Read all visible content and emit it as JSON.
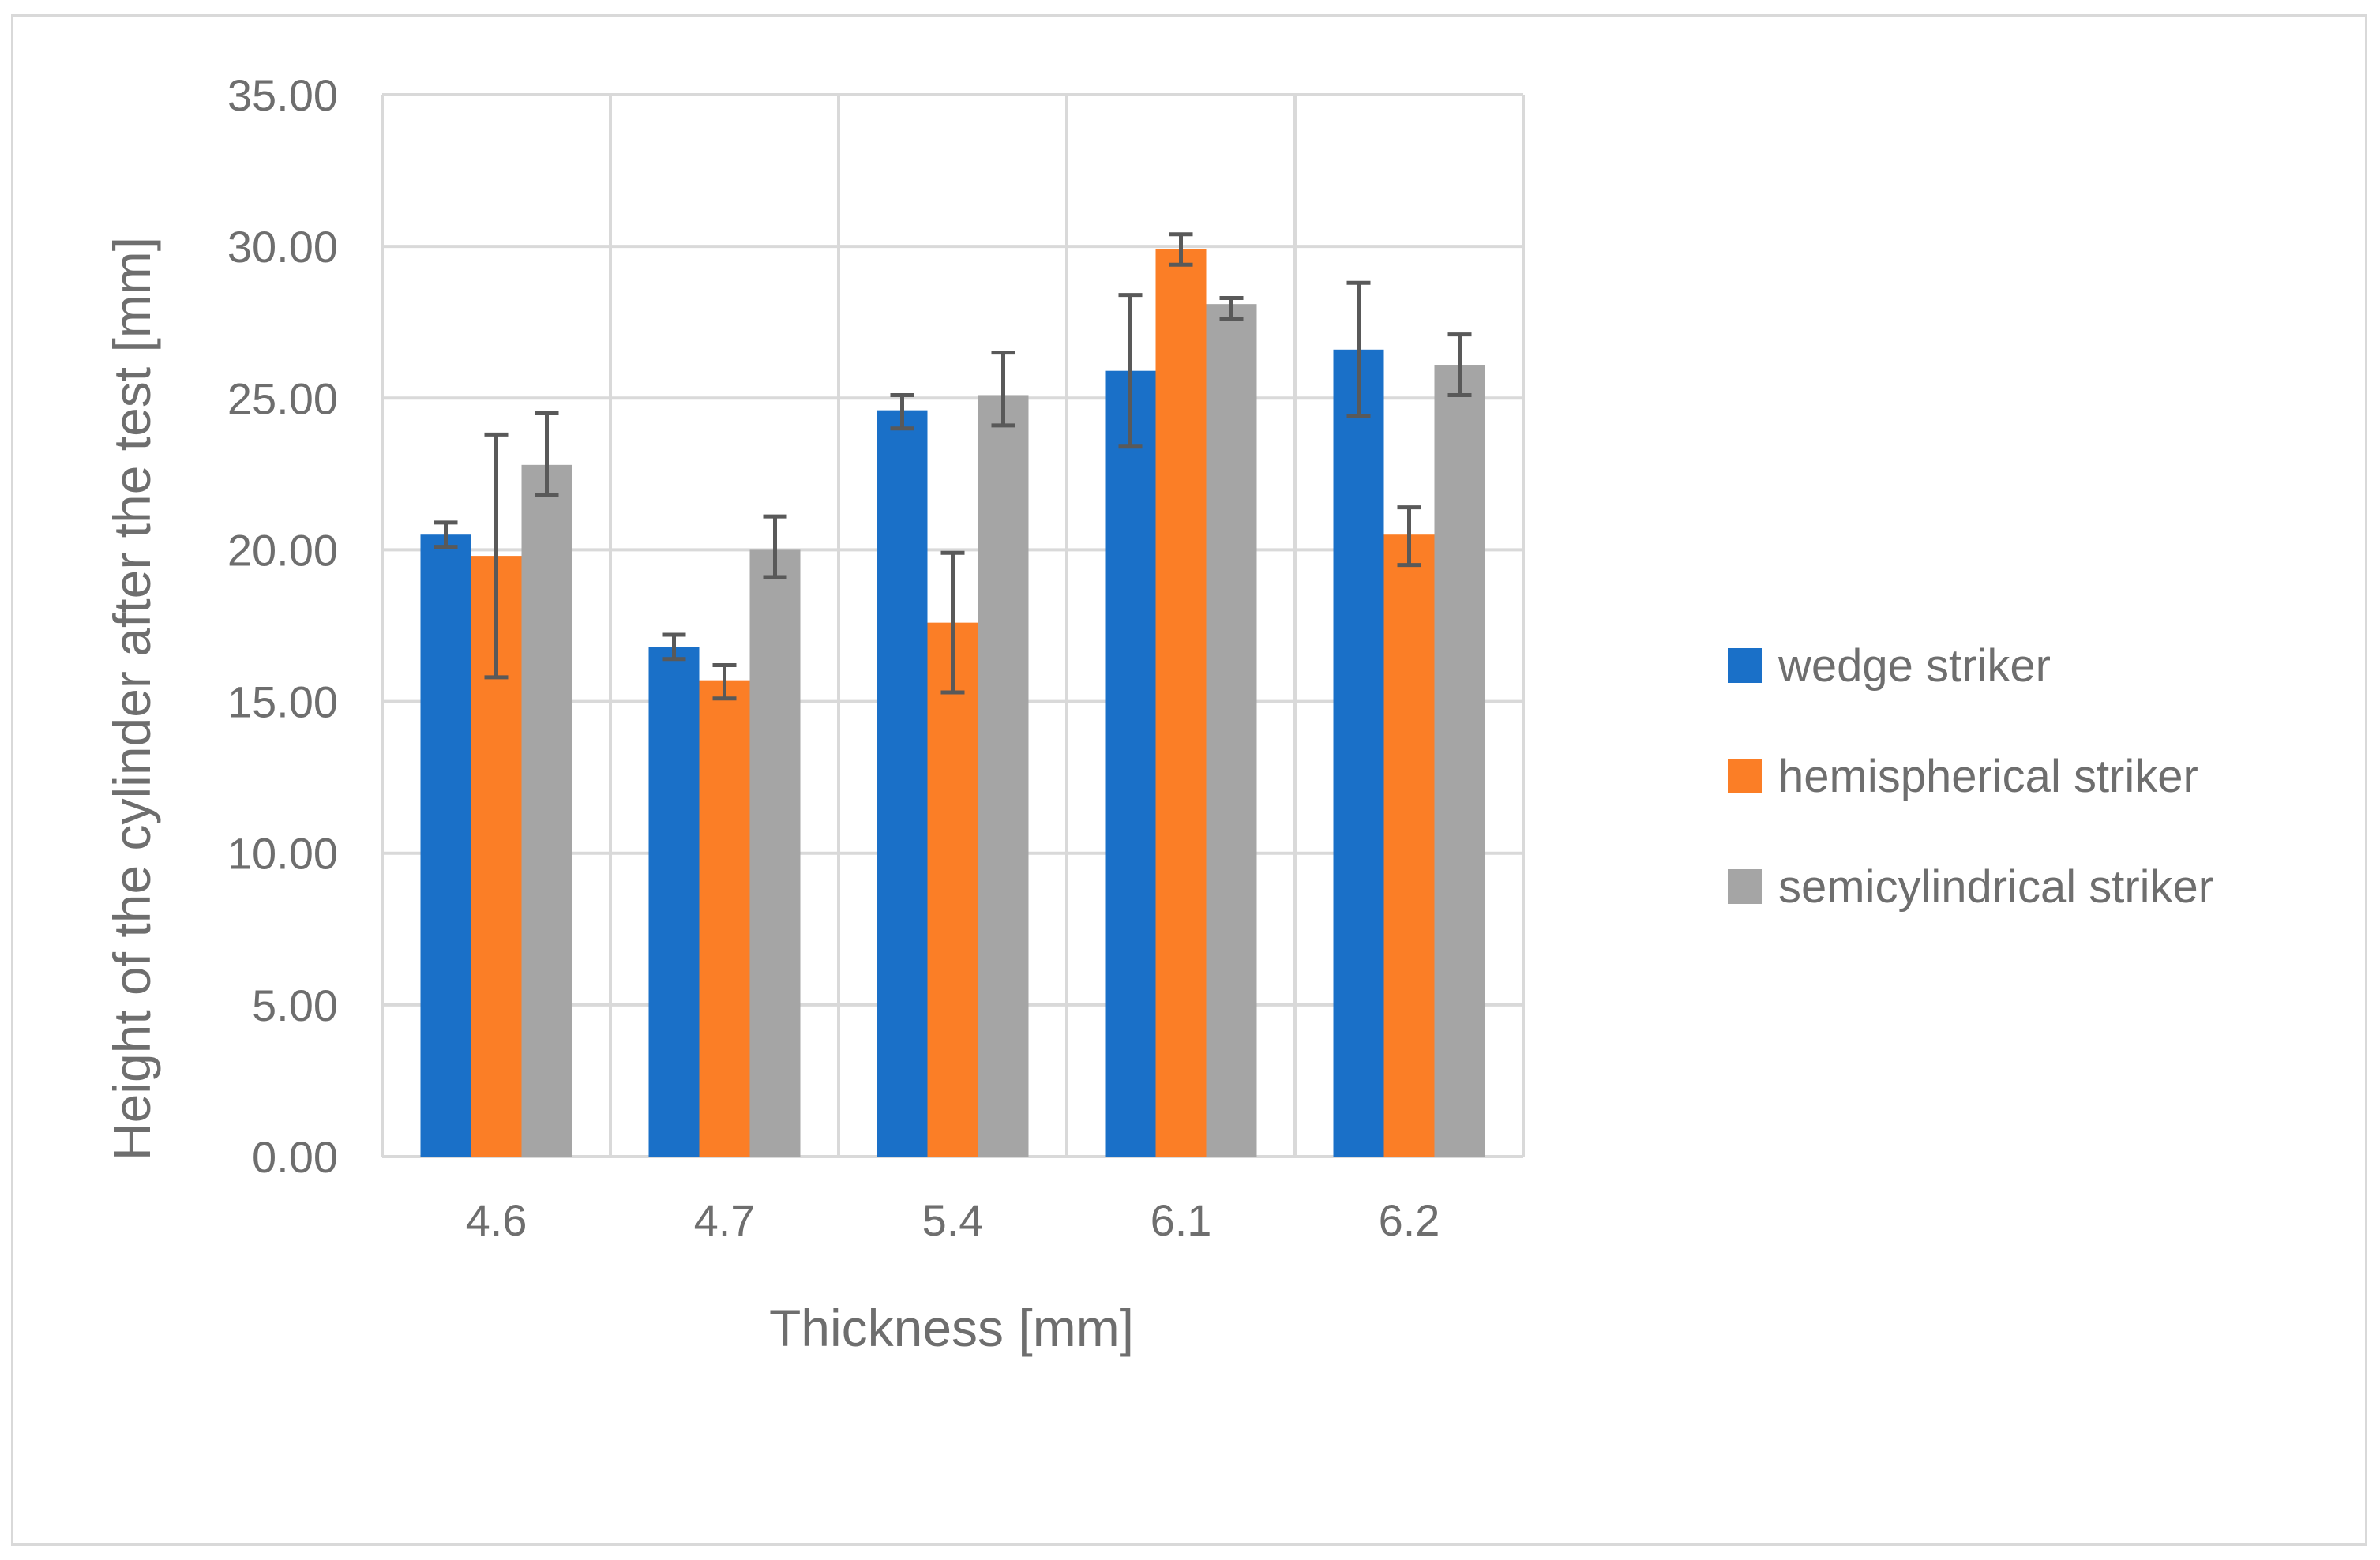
{
  "chart_data": {
    "type": "bar",
    "categories": [
      "4.6",
      "4.7",
      "5.4",
      "6.1",
      "6.2"
    ],
    "series": [
      {
        "name": "wedge striker",
        "color": "#1a70c8",
        "values": [
          20.5,
          16.8,
          24.6,
          25.9,
          26.6
        ],
        "error_low": [
          20.1,
          16.4,
          24.0,
          23.4,
          24.4
        ],
        "error_high": [
          20.9,
          17.2,
          25.1,
          28.4,
          28.8
        ]
      },
      {
        "name": "hemispherical striker",
        "color": "#fb7e26",
        "values": [
          19.8,
          15.7,
          17.6,
          29.9,
          20.5
        ],
        "error_low": [
          15.8,
          15.1,
          15.3,
          29.4,
          19.5
        ],
        "error_high": [
          23.8,
          16.2,
          19.9,
          30.4,
          21.4
        ]
      },
      {
        "name": "semicylindrical striker",
        "color": "#a5a5a5",
        "values": [
          22.8,
          20.0,
          25.1,
          28.1,
          26.1
        ],
        "error_low": [
          21.8,
          19.1,
          24.1,
          27.6,
          25.1
        ],
        "error_high": [
          24.5,
          21.1,
          26.5,
          28.3,
          27.1
        ]
      }
    ],
    "error_bar_color": "#595959",
    "ylim": [
      0,
      35
    ],
    "yticks": [
      "0.00",
      "5.00",
      "10.00",
      "15.00",
      "20.00",
      "25.00",
      "30.00",
      "35.00"
    ],
    "ytick_values": [
      0,
      5,
      10,
      15,
      20,
      25,
      30,
      35
    ],
    "xlabel": "Thickness [mm]",
    "ylabel": "Height of the cylinder after the test [mm]",
    "grid": true,
    "legend_position": "right"
  }
}
